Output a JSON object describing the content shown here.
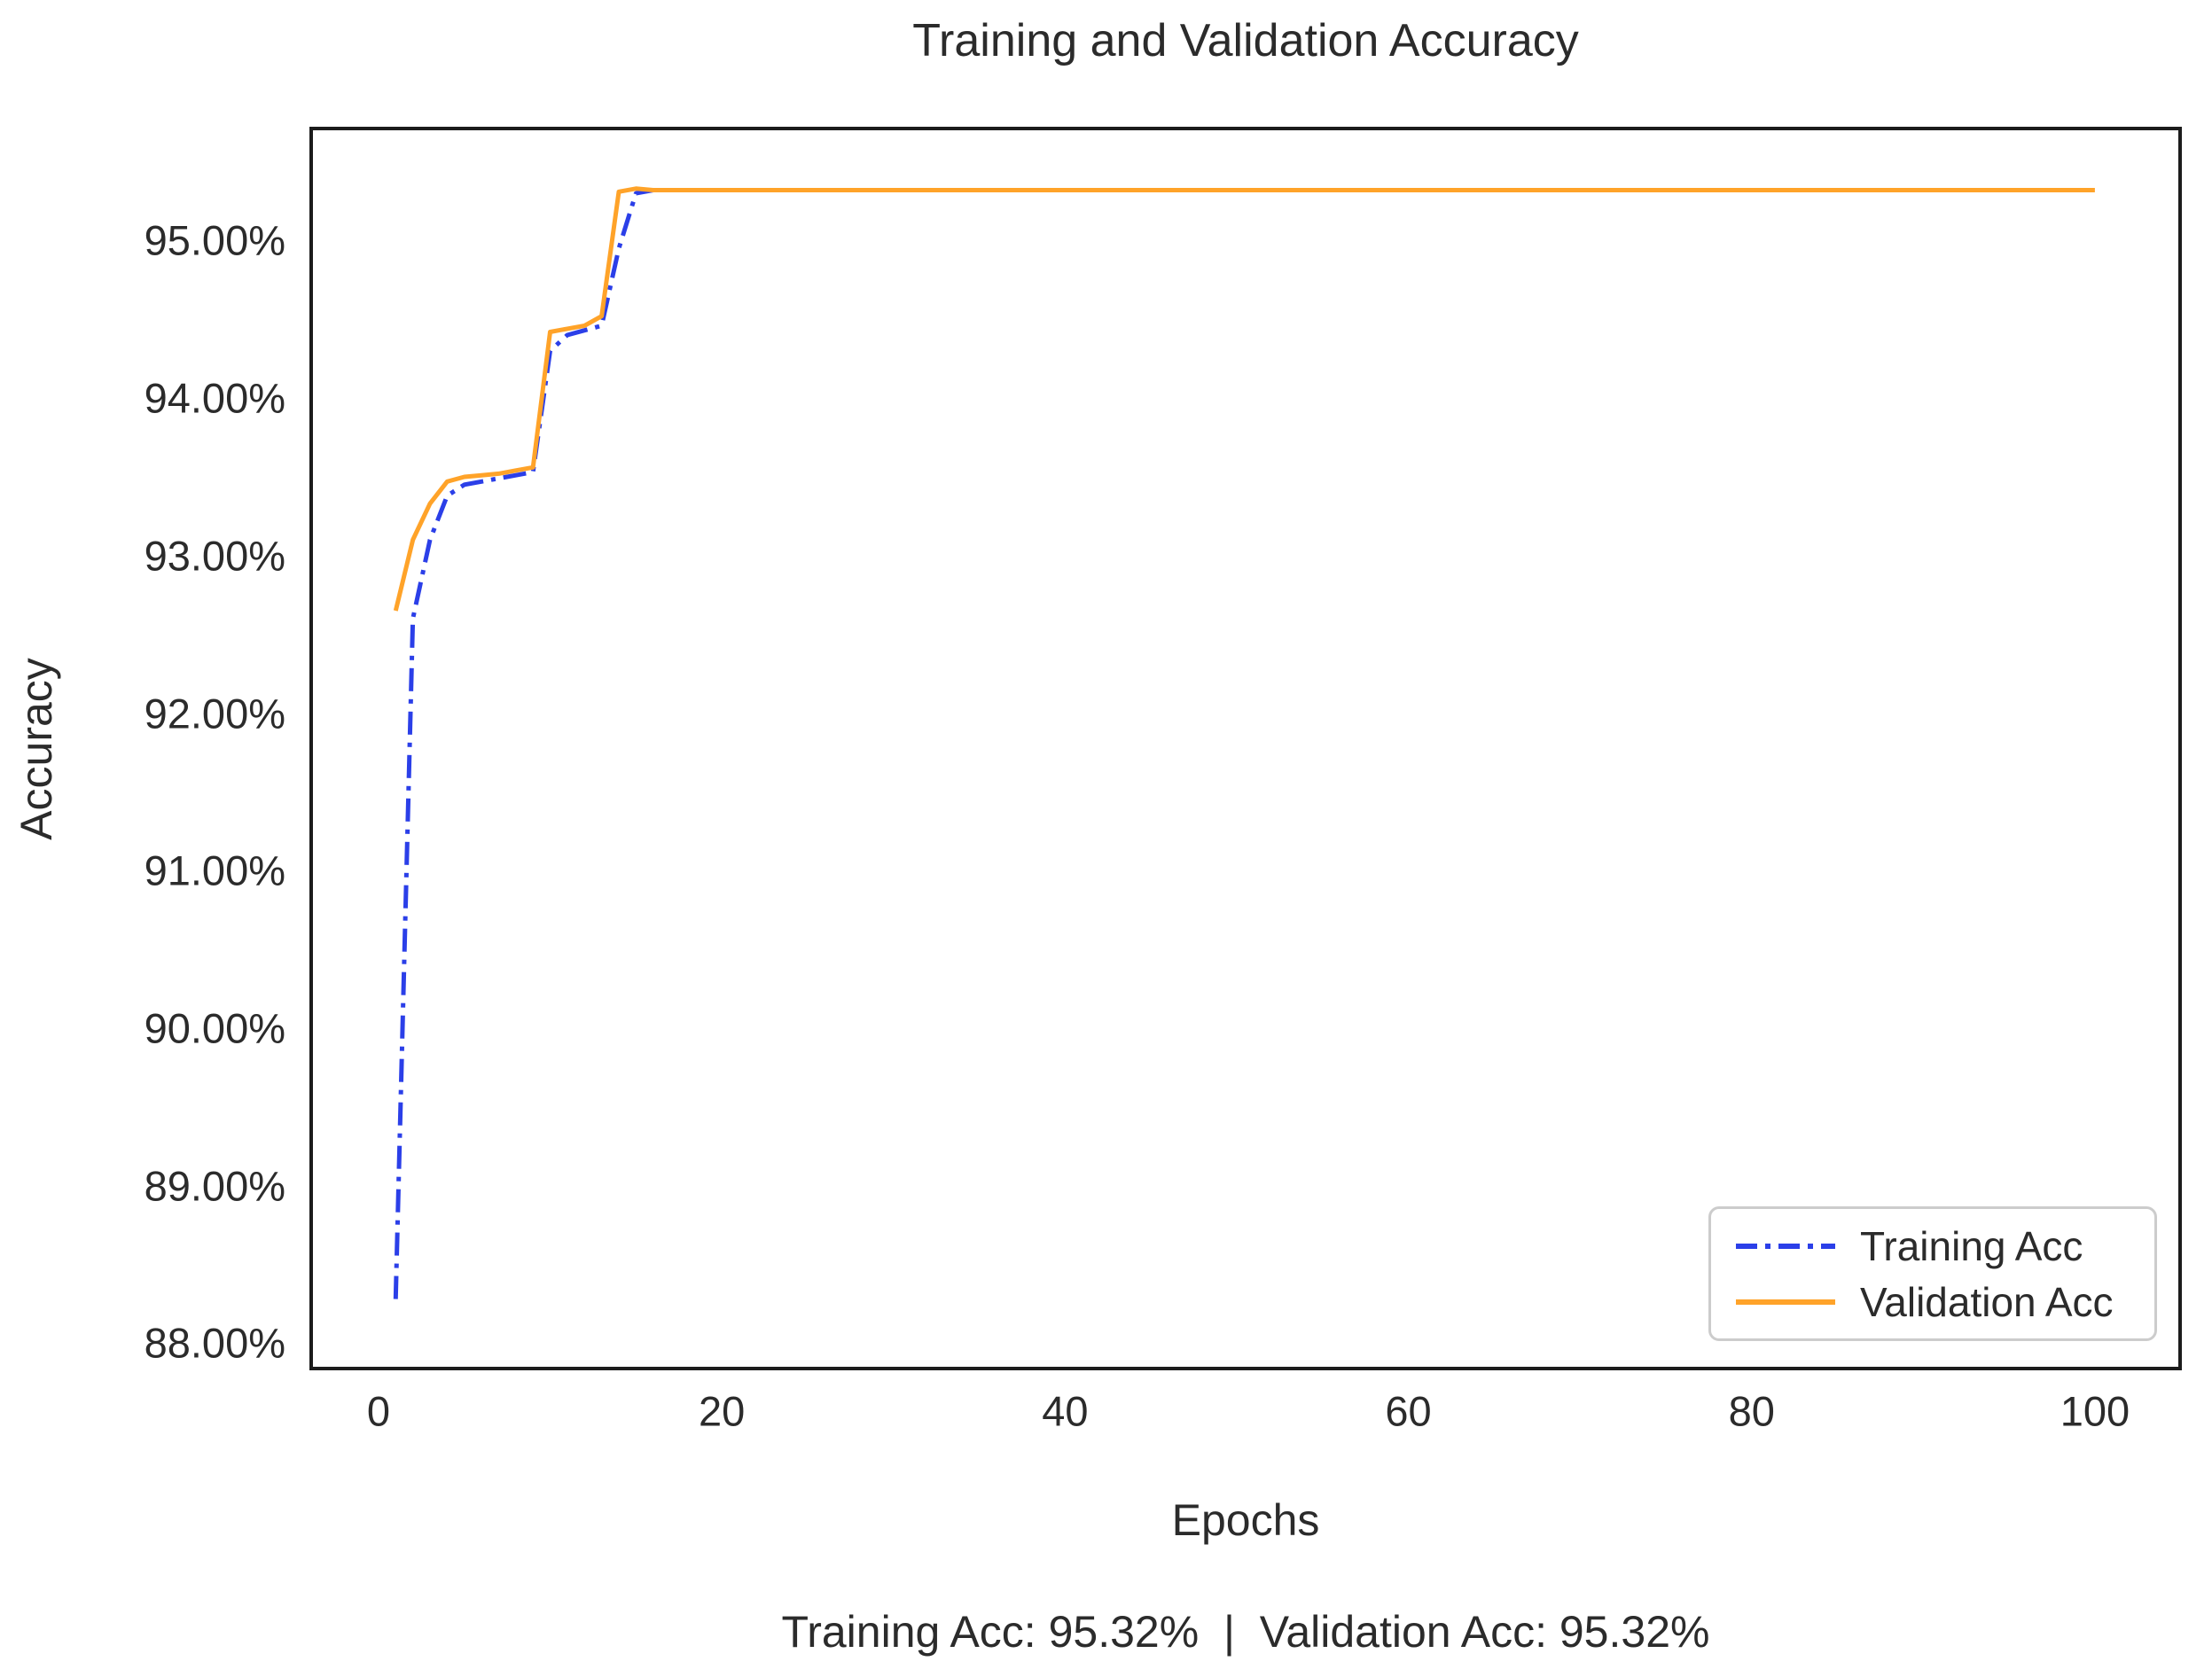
{
  "figure": {
    "title": "Training and Validation Accuracy",
    "xlabel": "Epochs",
    "ylabel": "Accuracy",
    "caption": "Training Acc: 95.32%  |  Validation Acc: 95.32%"
  },
  "chart_data": {
    "type": "line",
    "title": "Training and Validation Accuracy",
    "xlabel": "Epochs",
    "ylabel": "Accuracy",
    "x": [
      1,
      2,
      3,
      4,
      5,
      6,
      7,
      8,
      9,
      10,
      11,
      12,
      13,
      14,
      15,
      16,
      100
    ],
    "series": [
      {
        "name": "Training Acc",
        "color": "#2B3FE8",
        "linestyle": "dashdot",
        "values": [
          88.28,
          92.6,
          93.1,
          93.38,
          93.45,
          93.47,
          93.49,
          93.51,
          93.53,
          94.3,
          94.4,
          94.43,
          94.46,
          94.95,
          95.3,
          95.32,
          95.32
        ]
      },
      {
        "name": "Validation Acc",
        "color": "#FFA329",
        "linestyle": "solid",
        "values": [
          92.65,
          93.1,
          93.33,
          93.47,
          93.5,
          93.51,
          93.52,
          93.54,
          93.56,
          94.42,
          94.44,
          94.46,
          94.52,
          95.31,
          95.33,
          95.32,
          95.32
        ]
      }
    ],
    "final_training_acc": "95.32%",
    "final_validation_acc": "95.32%",
    "xlim": [
      -3.82,
      104.86
    ],
    "ylim": [
      87.85,
      95.7
    ],
    "x_ticks": [
      0,
      20,
      40,
      60,
      80,
      100
    ],
    "x_tick_labels": [
      "0",
      "20",
      "40",
      "60",
      "80",
      "100"
    ],
    "y_ticks": [
      88,
      89,
      90,
      91,
      92,
      93,
      94,
      95
    ],
    "y_tick_labels": [
      "88.00%",
      "89.00%",
      "90.00%",
      "91.00%",
      "92.00%",
      "93.00%",
      "94.00%",
      "95.00%"
    ],
    "grid": false,
    "legend_position": "lower right"
  }
}
